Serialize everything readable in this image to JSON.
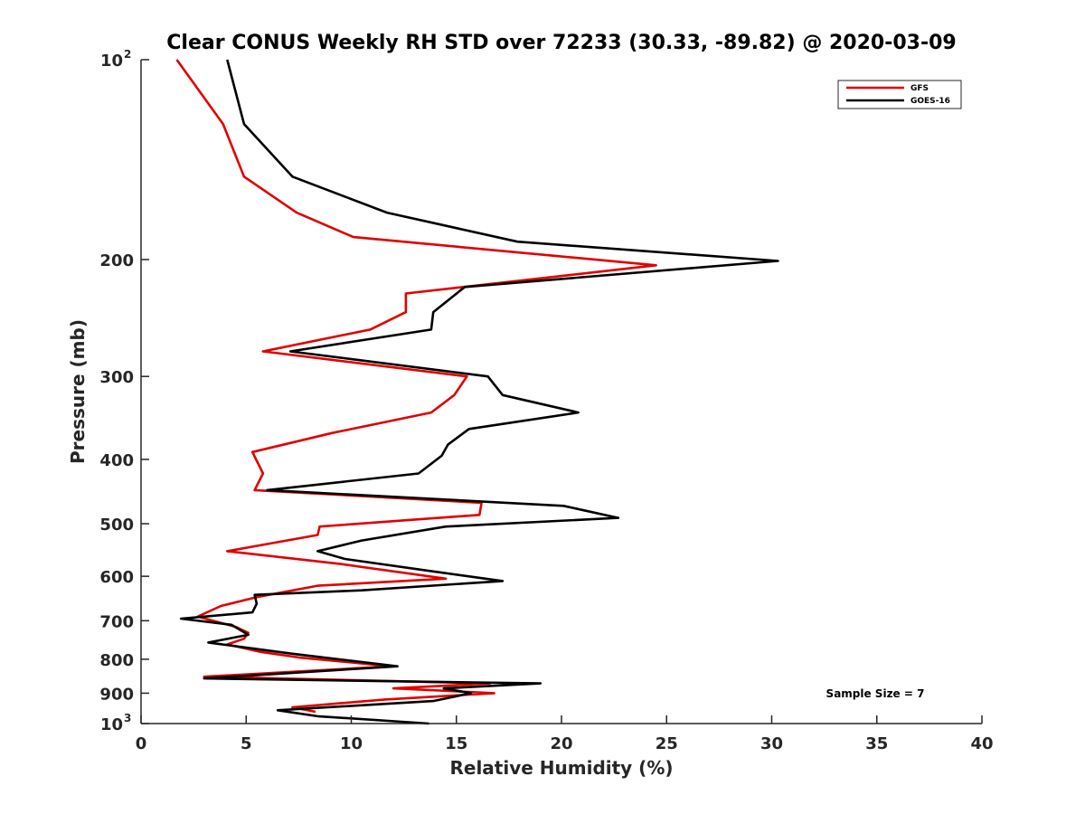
{
  "chart_data": {
    "type": "line",
    "title": "Clear CONUS Weekly RH STD over 72233 (30.33, -89.82) @ 2020-03-09",
    "xlabel": "Relative Humidity (%)",
    "ylabel": "Pressure (mb)",
    "xlim": [
      0,
      40
    ],
    "ylim": [
      100,
      1000
    ],
    "yscale": "log",
    "y_reversed": true,
    "x_ticks": [
      "0",
      "5",
      "10",
      "15",
      "20",
      "25",
      "30",
      "35",
      "40"
    ],
    "y_ticks": [
      {
        "value": 100,
        "base": "10",
        "exp": "2"
      },
      {
        "value": 200,
        "label": "200"
      },
      {
        "value": 300,
        "label": "300"
      },
      {
        "value": 400,
        "label": "400"
      },
      {
        "value": 500,
        "label": "500"
      },
      {
        "value": 600,
        "label": "600"
      },
      {
        "value": 700,
        "label": "700"
      },
      {
        "value": 800,
        "label": "800"
      },
      {
        "value": 900,
        "label": "900"
      },
      {
        "value": 1000,
        "base": "10",
        "exp": "3"
      }
    ],
    "grid": false,
    "legend_position": "top-right",
    "annotation": "Sample Size = 7",
    "series": [
      {
        "name": "GFS",
        "color": "#e00000",
        "points": [
          [
            1.7,
            100
          ],
          [
            3.9,
            125
          ],
          [
            4.9,
            150
          ],
          [
            7.4,
            170
          ],
          [
            10.1,
            185
          ],
          [
            24.5,
            204
          ],
          [
            12.6,
            225
          ],
          [
            12.6,
            240
          ],
          [
            10.9,
            255
          ],
          [
            5.8,
            275
          ],
          [
            15.5,
            300
          ],
          [
            14.9,
            320
          ],
          [
            13.8,
            340
          ],
          [
            9.1,
            365
          ],
          [
            5.3,
            390
          ],
          [
            5.8,
            420
          ],
          [
            5.4,
            445
          ],
          [
            16.2,
            465
          ],
          [
            16.1,
            485
          ],
          [
            8.5,
            505
          ],
          [
            8.4,
            520
          ],
          [
            4.1,
            550
          ],
          [
            9.5,
            575
          ],
          [
            14.5,
            605
          ],
          [
            8.4,
            620
          ],
          [
            5.5,
            645
          ],
          [
            3.8,
            665
          ],
          [
            2.7,
            690
          ],
          [
            4.5,
            715
          ],
          [
            5.1,
            730
          ],
          [
            4.9,
            745
          ],
          [
            4.1,
            760
          ],
          [
            5.7,
            780
          ],
          [
            7.5,
            795
          ],
          [
            11.9,
            820
          ],
          [
            3.0,
            850
          ],
          [
            16.6,
            870
          ],
          [
            12.0,
            885
          ],
          [
            16.8,
            900
          ],
          [
            11.6,
            920
          ],
          [
            7.2,
            945
          ],
          [
            8.3,
            960
          ]
        ]
      },
      {
        "name": "GOES-16",
        "color": "#000000",
        "points": [
          [
            4.1,
            100
          ],
          [
            4.9,
            125
          ],
          [
            7.2,
            150
          ],
          [
            11.7,
            170
          ],
          [
            17.9,
            188
          ],
          [
            30.3,
            201
          ],
          [
            15.4,
            220
          ],
          [
            13.9,
            240
          ],
          [
            13.8,
            255
          ],
          [
            7.1,
            275
          ],
          [
            16.5,
            300
          ],
          [
            17.2,
            320
          ],
          [
            20.8,
            340
          ],
          [
            15.6,
            360
          ],
          [
            14.6,
            380
          ],
          [
            14.3,
            395
          ],
          [
            13.2,
            420
          ],
          [
            6.0,
            445
          ],
          [
            20.1,
            470
          ],
          [
            22.7,
            490
          ],
          [
            14.5,
            505
          ],
          [
            10.5,
            530
          ],
          [
            8.4,
            550
          ],
          [
            9.7,
            565
          ],
          [
            13.9,
            590
          ],
          [
            17.2,
            610
          ],
          [
            10.5,
            630
          ],
          [
            5.4,
            640
          ],
          [
            5.5,
            660
          ],
          [
            5.3,
            680
          ],
          [
            1.9,
            695
          ],
          [
            4.3,
            710
          ],
          [
            5.1,
            735
          ],
          [
            3.2,
            755
          ],
          [
            7.2,
            785
          ],
          [
            12.2,
            820
          ],
          [
            3.0,
            855
          ],
          [
            19.0,
            870
          ],
          [
            14.4,
            885
          ],
          [
            15.7,
            900
          ],
          [
            13.9,
            925
          ],
          [
            6.5,
            955
          ],
          [
            8.4,
            975
          ],
          [
            13.7,
            1000
          ]
        ]
      }
    ]
  }
}
